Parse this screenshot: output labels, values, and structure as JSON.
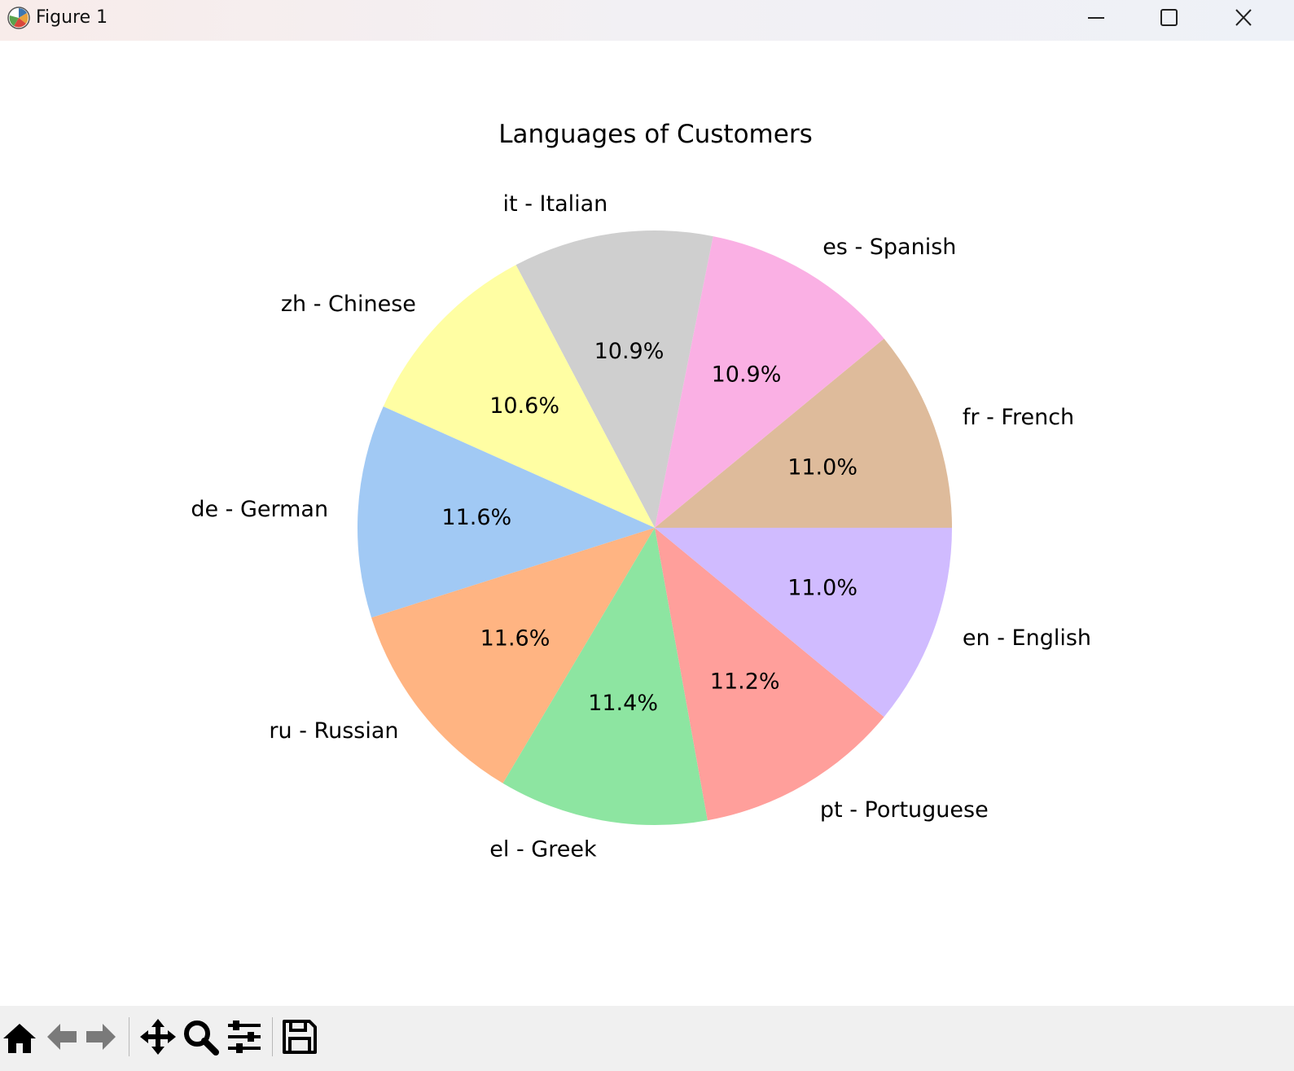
{
  "window": {
    "title": "Figure 1"
  },
  "toolbar": {
    "buttons": [
      {
        "name": "home-button",
        "icon": "home-icon"
      },
      {
        "name": "back-button",
        "icon": "arrow-left-icon"
      },
      {
        "name": "forward-button",
        "icon": "arrow-right-icon"
      },
      {
        "name": "pan-button",
        "icon": "move-icon"
      },
      {
        "name": "zoom-button",
        "icon": "magnifier-icon"
      },
      {
        "name": "configure-subplots-button",
        "icon": "sliders-icon"
      },
      {
        "name": "save-button",
        "icon": "floppy-disk-icon"
      }
    ]
  },
  "chart_data": {
    "type": "pie",
    "title": "Languages of Customers",
    "start_angle_deg": 0,
    "direction": "counterclockwise",
    "slices": [
      {
        "label": "fr - French",
        "value": 11.0,
        "pct_label": "11.0%",
        "color": "#debb9b"
      },
      {
        "label": "es - Spanish",
        "value": 10.9,
        "pct_label": "10.9%",
        "color": "#fab0e4"
      },
      {
        "label": "it - Italian",
        "value": 10.9,
        "pct_label": "10.9%",
        "color": "#cfcfcf"
      },
      {
        "label": "zh - Chinese",
        "value": 10.6,
        "pct_label": "10.6%",
        "color": "#fffea3"
      },
      {
        "label": "de - German",
        "value": 11.6,
        "pct_label": "11.6%",
        "color": "#a1c9f4"
      },
      {
        "label": "ru - Russian",
        "value": 11.6,
        "pct_label": "11.6%",
        "color": "#ffb482"
      },
      {
        "label": "el - Greek",
        "value": 11.4,
        "pct_label": "11.4%",
        "color": "#8de5a1"
      },
      {
        "label": "pt - Portuguese",
        "value": 11.2,
        "pct_label": "11.2%",
        "color": "#ff9f9b"
      },
      {
        "label": "en - English",
        "value": 11.0,
        "pct_label": "11.0%",
        "color": "#d0bbff"
      }
    ]
  }
}
